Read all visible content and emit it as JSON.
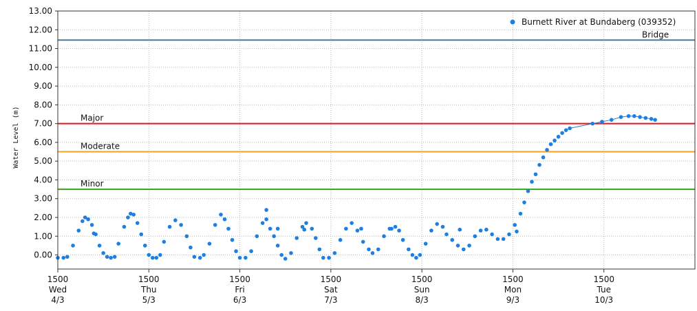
{
  "chart_data": {
    "type": "scatter",
    "ylabel": "Water Level (m)",
    "ylim": [
      -0.75,
      13.0
    ],
    "yticks": [
      "13.00",
      "12.00",
      "11.00",
      "10.00",
      "9.00",
      "8.00",
      "7.00",
      "6.00",
      "5.00",
      "4.00",
      "3.00",
      "2.00",
      "1.00",
      "0.00"
    ],
    "ytick_values": [
      13,
      12,
      11,
      10,
      9,
      8,
      7,
      6,
      5,
      4,
      3,
      2,
      1,
      0
    ],
    "xlim": [
      0,
      168
    ],
    "xticks": [
      {
        "time": "1500",
        "day": "Wed",
        "date": "4/3"
      },
      {
        "time": "1500",
        "day": "Thu",
        "date": "5/3"
      },
      {
        "time": "1500",
        "day": "Fri",
        "date": "6/3"
      },
      {
        "time": "1500",
        "day": "Sat",
        "date": "7/3"
      },
      {
        "time": "1500",
        "day": "Sun",
        "date": "8/3"
      },
      {
        "time": "1500",
        "day": "Mon",
        "date": "9/3"
      },
      {
        "time": "1500",
        "day": "Tue",
        "date": "10/3"
      }
    ],
    "grid": true,
    "legend_position": "top-right",
    "series": [
      {
        "name": "Burnett River at Bundaberg (039352)",
        "color": "#1e7fe0",
        "points": [
          [
            0,
            -0.15
          ],
          [
            1.5,
            -0.15
          ],
          [
            2.5,
            -0.1
          ],
          [
            4,
            0.5
          ],
          [
            5.5,
            1.3
          ],
          [
            6.5,
            1.8
          ],
          [
            7.2,
            2.0
          ],
          [
            8,
            1.9
          ],
          [
            9,
            1.6
          ],
          [
            10,
            1.1
          ],
          [
            11,
            0.5
          ],
          [
            12,
            0.1
          ],
          [
            13,
            -0.1
          ],
          [
            14,
            -0.15
          ],
          [
            15,
            -0.1
          ],
          [
            16,
            0.6
          ],
          [
            17.5,
            1.5
          ],
          [
            18.5,
            2.0
          ],
          [
            19.2,
            2.2
          ],
          [
            20,
            2.15
          ],
          [
            21,
            1.7
          ],
          [
            22,
            1.1
          ],
          [
            23,
            0.5
          ],
          [
            24,
            0.0
          ],
          [
            25,
            -0.15
          ],
          [
            26,
            -0.15
          ],
          [
            27,
            0.0
          ],
          [
            28,
            0.7
          ],
          [
            29.5,
            1.5
          ],
          [
            31,
            1.85
          ],
          [
            32.5,
            1.6
          ],
          [
            34,
            1.0
          ],
          [
            35,
            0.4
          ],
          [
            36,
            -0.1
          ],
          [
            37.5,
            -0.15
          ],
          [
            38.5,
            0.0
          ],
          [
            40,
            0.6
          ],
          [
            41.5,
            1.6
          ],
          [
            43,
            2.15
          ],
          [
            44,
            1.9
          ],
          [
            45,
            1.4
          ],
          [
            46,
            0.8
          ],
          [
            47,
            0.2
          ],
          [
            48,
            -0.15
          ],
          [
            49.5,
            -0.15
          ],
          [
            51,
            0.2
          ],
          [
            52.5,
            1.0
          ],
          [
            54,
            1.7
          ],
          [
            55,
            1.9
          ],
          [
            56,
            1.4
          ],
          [
            57,
            1.0
          ],
          [
            58,
            0.5
          ],
          [
            59,
            0.0
          ],
          [
            60,
            -0.2
          ],
          [
            61.5,
            0.1
          ],
          [
            63,
            0.9
          ],
          [
            64.5,
            1.5
          ],
          [
            65.5,
            1.7
          ],
          [
            67,
            1.4
          ],
          [
            68,
            0.9
          ],
          [
            69,
            0.3
          ],
          [
            70,
            -0.15
          ],
          [
            71.5,
            -0.15
          ],
          [
            73,
            0.1
          ],
          [
            74.5,
            0.8
          ],
          [
            76,
            1.4
          ],
          [
            77.5,
            1.7
          ],
          [
            79,
            1.3
          ],
          [
            80.5,
            0.7
          ],
          [
            82,
            0.3
          ],
          [
            83,
            0.1
          ],
          [
            84.5,
            0.3
          ],
          [
            86,
            1.0
          ],
          [
            87.5,
            1.4
          ],
          [
            89,
            1.5
          ],
          [
            90,
            1.3
          ],
          [
            91,
            0.8
          ],
          [
            92.5,
            0.3
          ],
          [
            93.5,
            0.0
          ],
          [
            94.5,
            -0.15
          ],
          [
            95.5,
            0.0
          ],
          [
            97,
            0.6
          ],
          [
            98.5,
            1.3
          ],
          [
            100,
            1.65
          ],
          [
            101.5,
            1.5
          ],
          [
            102.5,
            1.1
          ],
          [
            104,
            0.8
          ],
          [
            105.5,
            0.5
          ],
          [
            107,
            0.3
          ],
          [
            108.5,
            0.5
          ],
          [
            110,
            1.0
          ],
          [
            111.5,
            1.3
          ],
          [
            113,
            1.35
          ],
          [
            114.5,
            1.1
          ],
          [
            116,
            0.85
          ],
          [
            117.5,
            0.85
          ],
          [
            119,
            1.1
          ],
          [
            120.5,
            1.6
          ],
          [
            122,
            2.2
          ],
          [
            123,
            2.8
          ],
          [
            124,
            3.4
          ],
          [
            125,
            3.9
          ],
          [
            126,
            4.3
          ],
          [
            127,
            4.8
          ],
          [
            128,
            5.2
          ],
          [
            129,
            5.6
          ],
          [
            130,
            5.9
          ],
          [
            131,
            6.1
          ],
          [
            132,
            6.3
          ],
          [
            133,
            6.5
          ],
          [
            134,
            6.65
          ],
          [
            135,
            6.75
          ],
          [
            141,
            7.0
          ],
          [
            143.5,
            7.1
          ],
          [
            146,
            7.2
          ],
          [
            148.5,
            7.35
          ],
          [
            150.5,
            7.4
          ],
          [
            152,
            7.4
          ],
          [
            153.5,
            7.35
          ],
          [
            155,
            7.3
          ],
          [
            156.5,
            7.25
          ],
          [
            157.5,
            7.2
          ],
          [
            9.5,
            1.15
          ],
          [
            55,
            2.4
          ],
          [
            58,
            1.4
          ],
          [
            65,
            1.35
          ],
          [
            80,
            1.4
          ],
          [
            88,
            1.4
          ],
          [
            106,
            1.35
          ],
          [
            121,
            1.25
          ]
        ]
      }
    ],
    "thresholds": [
      {
        "name": "Bridge",
        "value": 11.45,
        "color": "#4a7a96"
      },
      {
        "name": "Major",
        "value": 7.0,
        "color": "#e8141b"
      },
      {
        "name": "Moderate",
        "value": 5.5,
        "color": "#f5a21e"
      },
      {
        "name": "Minor",
        "value": 3.5,
        "color": "#39a01d"
      }
    ]
  }
}
